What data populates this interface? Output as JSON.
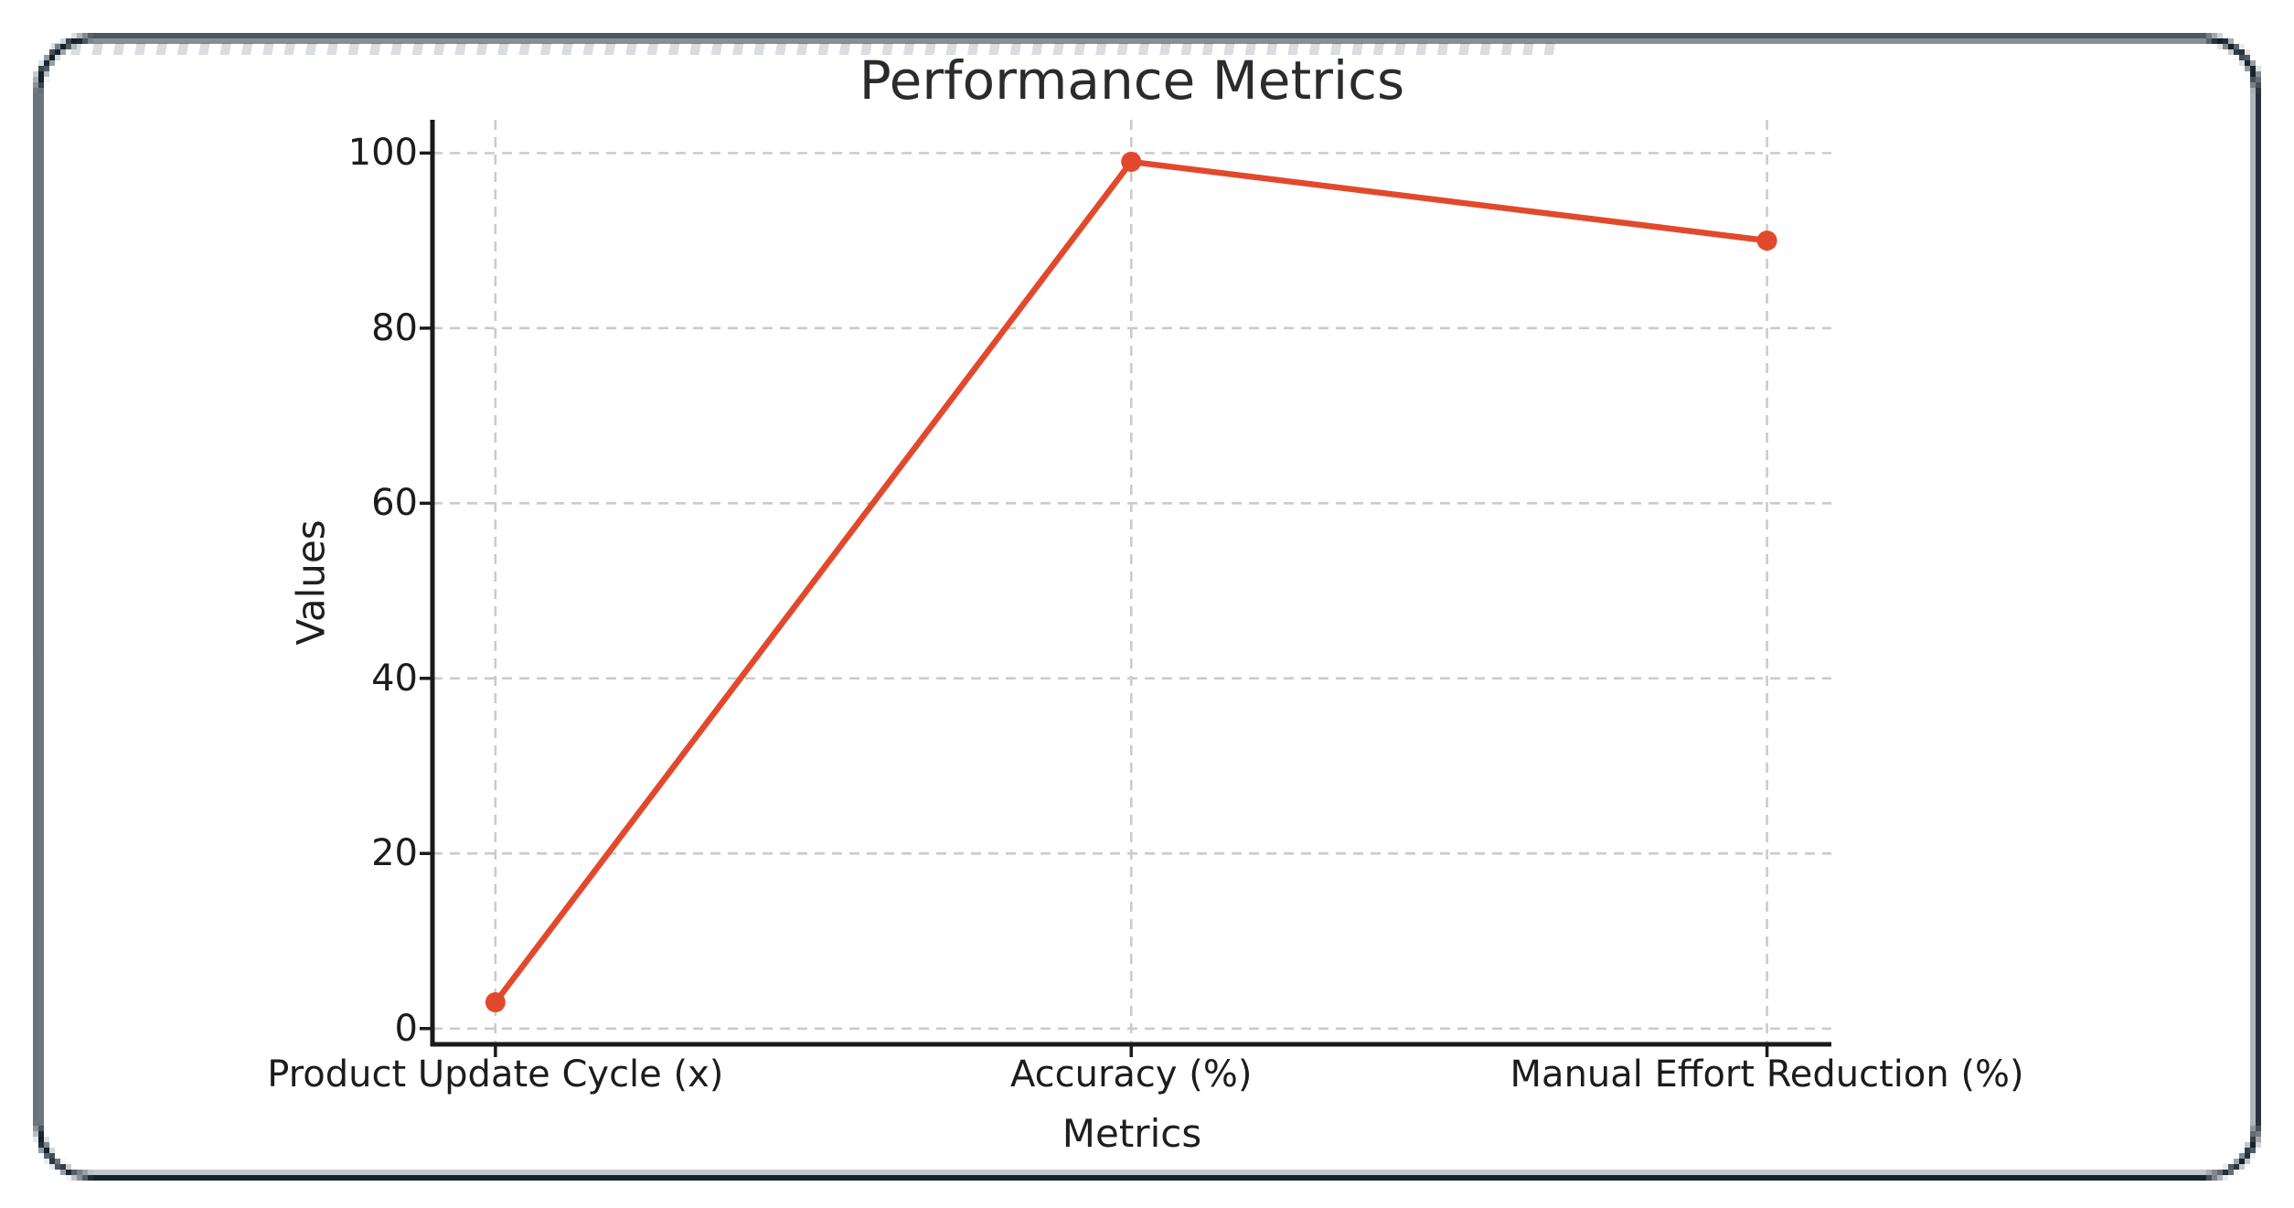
{
  "frame": {
    "color": "#15202b"
  },
  "chart_data": {
    "type": "line",
    "title": "Performance Metrics",
    "xlabel": "Metrics",
    "ylabel": "Values",
    "categories": [
      "Product Update Cycle (x)",
      "Accuracy (%)",
      "Manual Effort Reduction (%)"
    ],
    "values": [
      3,
      99,
      90
    ],
    "yticks": [
      0,
      20,
      40,
      60,
      80,
      100
    ],
    "ylim": [
      -1.8,
      103.8
    ],
    "grid": true,
    "grid_style": "dashed",
    "grid_color": "#cbcbcb",
    "axis_color": "#1a1a1a",
    "line_color": "#e2492c",
    "marker": "circle",
    "legend": null
  }
}
